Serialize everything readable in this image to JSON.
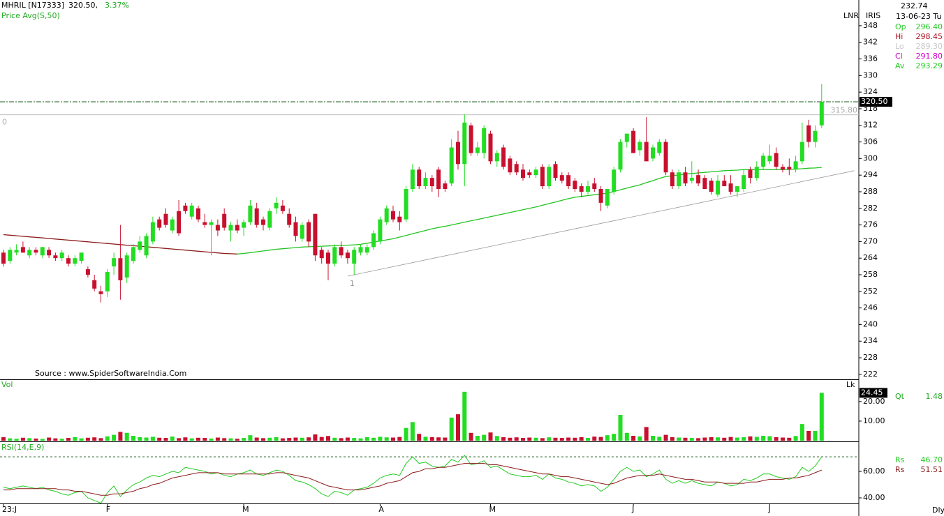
{
  "chart_data": {
    "type": "candlestick",
    "symbol": "MHRIL [N17333]",
    "last": "320.50,",
    "change": "3.37%",
    "source": "Source : www.SpiderSoftwareIndia.Com",
    "scale_labels": [
      "LNR",
      "IRIS"
    ],
    "period": "Dly",
    "up_color": "#22dd22",
    "down_color": "#c8102e",
    "categories": [
      "23:J",
      null,
      null,
      null,
      null,
      null,
      null,
      null,
      null,
      null,
      null,
      null,
      null,
      null,
      null,
      null,
      "F",
      null,
      null,
      null,
      null,
      null,
      null,
      null,
      null,
      null,
      null,
      null,
      null,
      null,
      null,
      null,
      null,
      null,
      null,
      null,
      null,
      "M",
      null,
      null,
      null,
      null,
      null,
      null,
      null,
      null,
      null,
      null,
      null,
      null,
      null,
      null,
      null,
      null,
      null,
      null,
      null,
      null,
      "A",
      null,
      null,
      null,
      null,
      null,
      null,
      null,
      null,
      null,
      null,
      null,
      null,
      null,
      null,
      null,
      null,
      "M",
      null,
      null,
      null,
      null,
      null,
      null,
      null,
      null,
      null,
      null,
      null,
      null,
      null,
      null,
      null,
      null,
      null,
      null,
      null,
      null,
      null,
      "J",
      null,
      null,
      null,
      null,
      null,
      null,
      null,
      null,
      null,
      null,
      null,
      null,
      null,
      null,
      null,
      null,
      null,
      null,
      null,
      null,
      "J",
      null,
      null,
      null,
      null,
      null,
      null,
      null,
      null
    ],
    "open": [
      266,
      263,
      266,
      268,
      265,
      267,
      265,
      267,
      265,
      264,
      264,
      262,
      263,
      260,
      256,
      252,
      252,
      261,
      264,
      257,
      263,
      267,
      265,
      270,
      278,
      280,
      274,
      281,
      283,
      279,
      282,
      277,
      276,
      276,
      280,
      274,
      276,
      275,
      277,
      282,
      278,
      275,
      282,
      283,
      280,
      277,
      271,
      277,
      280,
      267,
      266,
      262,
      268,
      266,
      262,
      266,
      266,
      268,
      270,
      277,
      281,
      279,
      278,
      289,
      296,
      290,
      293,
      296,
      291,
      291,
      306,
      298,
      312,
      302,
      302,
      309,
      299,
      304,
      300,
      298,
      296,
      295,
      294,
      297,
      290,
      298,
      294,
      294,
      292,
      290,
      288,
      291,
      289,
      283,
      288,
      296,
      306,
      310,
      303,
      306,
      300,
      302,
      306,
      295,
      290,
      295,
      292,
      294,
      293,
      292,
      287,
      292,
      291,
      288,
      289,
      296,
      293,
      297,
      299,
      302,
      297,
      297,
      296,
      299,
      312,
      306,
      312
    ],
    "high": [
      267,
      268,
      269,
      270,
      268,
      268,
      268,
      268,
      266,
      267,
      265,
      265,
      266,
      261,
      258,
      254,
      260,
      266,
      276,
      266,
      269,
      272,
      273,
      279,
      279,
      282,
      279,
      285,
      284,
      284,
      283,
      280,
      278,
      278,
      282,
      277,
      278,
      278,
      285,
      284,
      279,
      282,
      286,
      285,
      282,
      279,
      277,
      278,
      280,
      268,
      267,
      269,
      270,
      267,
      268,
      269,
      269,
      274,
      279,
      283,
      283,
      281,
      290,
      298,
      297,
      295,
      294,
      297,
      292,
      307,
      310,
      316,
      313,
      306,
      312,
      310,
      303,
      305,
      301,
      299,
      298,
      296,
      297,
      298,
      298,
      299,
      295,
      295,
      293,
      291,
      292,
      293,
      290,
      289,
      297,
      307,
      309,
      311,
      307,
      315,
      305,
      307,
      307,
      296,
      296,
      297,
      299,
      296,
      294,
      293,
      294,
      294,
      294,
      290,
      296,
      297,
      299,
      302,
      305,
      304,
      298,
      300,
      301,
      313,
      314,
      312,
      327
    ],
    "low": [
      261,
      262,
      265,
      266,
      264,
      265,
      264,
      264,
      263,
      263,
      261,
      261,
      262,
      257,
      252,
      248,
      250,
      258,
      249,
      255,
      262,
      266,
      264,
      269,
      274,
      275,
      273,
      272,
      280,
      278,
      277,
      275,
      265,
      272,
      274,
      270,
      273,
      272,
      276,
      275,
      274,
      274,
      280,
      280,
      275,
      270,
      270,
      268,
      263,
      262,
      256,
      261,
      264,
      262,
      258,
      265,
      265,
      267,
      269,
      276,
      277,
      274,
      277,
      288,
      289,
      289,
      288,
      286,
      288,
      290,
      296,
      290,
      301,
      301,
      300,
      298,
      297,
      296,
      294,
      294,
      292,
      293,
      293,
      289,
      289,
      292,
      291,
      289,
      288,
      286,
      287,
      288,
      281,
      282,
      287,
      295,
      304,
      302,
      301,
      299,
      299,
      301,
      294,
      289,
      289,
      290,
      291,
      290,
      289,
      287,
      286,
      290,
      287,
      286,
      288,
      291,
      292,
      296,
      298,
      296,
      295,
      294,
      295,
      298,
      304,
      304,
      311
    ],
    "close": [
      262,
      267,
      267,
      266,
      267,
      266,
      268,
      265,
      264,
      266,
      262,
      264,
      266,
      258,
      253,
      251,
      259,
      264,
      256,
      265,
      268,
      270,
      272,
      277,
      275,
      276,
      278,
      273,
      281,
      283,
      278,
      276,
      277,
      274,
      275,
      276,
      274,
      277,
      283,
      276,
      276,
      281,
      284,
      281,
      276,
      272,
      276,
      270,
      265,
      264,
      262,
      268,
      265,
      264,
      267,
      268,
      268,
      273,
      278,
      282,
      278,
      277,
      289,
      296,
      290,
      293,
      290,
      289,
      289,
      304,
      298,
      313,
      302,
      304,
      311,
      299,
      302,
      297,
      295,
      295,
      293,
      294,
      296,
      290,
      297,
      293,
      292,
      290,
      289,
      288,
      290,
      289,
      284,
      289,
      296,
      306,
      309,
      302,
      306,
      299,
      304,
      306,
      295,
      290,
      295,
      291,
      293,
      291,
      289,
      288,
      292,
      290,
      288,
      290,
      294,
      293,
      297,
      301,
      301,
      297,
      296,
      296,
      299,
      306,
      306,
      310,
      320.5
    ],
    "close_label": "320.50",
    "ylim": [
      220.2,
      357.3
    ],
    "yticks": [
      348,
      342,
      336,
      330,
      324,
      318,
      312,
      306,
      300,
      294,
      288,
      282,
      276,
      270,
      264,
      258,
      252,
      246,
      240,
      234,
      228,
      222
    ],
    "ma": {
      "name": "Price Avg(S,50)",
      "color": "#22c422",
      "down_color": "#8b1a1a",
      "values": [
        272.5,
        272.3,
        272.1,
        271.9,
        271.7,
        271.5,
        271.3,
        271.1,
        270.9,
        270.7,
        270.5,
        270.3,
        270.1,
        269.9,
        269.7,
        269.5,
        269.3,
        269.1,
        268.9,
        268.7,
        268.5,
        268.3,
        268.1,
        267.9,
        267.7,
        267.5,
        267.3,
        267.1,
        266.9,
        266.7,
        266.5,
        266.3,
        266.1,
        265.9,
        265.7,
        265.6,
        265.5,
        265.7,
        266.0,
        266.3,
        266.6,
        266.9,
        267.2,
        267.4,
        267.6,
        267.8,
        268.0,
        268.1,
        268.2,
        268.3,
        268.4,
        268.5,
        268.6,
        268.7,
        268.8,
        269.0,
        269.4,
        269.8,
        270.2,
        270.6,
        271.0,
        271.6,
        272.2,
        272.8,
        273.4,
        274.0,
        274.6,
        275.1,
        275.5,
        276.0,
        276.5,
        277.0,
        277.5,
        278.0,
        278.5,
        279.0,
        279.5,
        280.0,
        280.5,
        281.0,
        281.5,
        282.0,
        282.5,
        283.1,
        283.7,
        284.3,
        284.9,
        285.5,
        286.0,
        286.3,
        286.6,
        286.9,
        287.2,
        287.5,
        288.1,
        288.7,
        289.3,
        289.9,
        290.5,
        291.3,
        292.0,
        292.8,
        293.5,
        293.8,
        294.1,
        294.4,
        294.6,
        294.8,
        295.0,
        295.2,
        295.4,
        295.6,
        295.7,
        295.8,
        296.0,
        296.0,
        296.0,
        296.0,
        296.0,
        296.0,
        296.0,
        296.1,
        296.2,
        296.3,
        296.5,
        296.6,
        296.8
      ]
    },
    "levels": [
      {
        "name": "0",
        "value": 315.8,
        "label": "315.80"
      }
    ],
    "trendline": {
      "name": "1",
      "x": [
        53,
        131
      ],
      "y": [
        257.5,
        295.6
      ]
    },
    "info": {
      "price": "232.74",
      "date": "13-06-23 Tu",
      "rows": [
        {
          "name": "Op",
          "value": "296.40",
          "color": "#22cc22"
        },
        {
          "name": "Hi",
          "value": "298.45",
          "color": "#b01020"
        },
        {
          "name": "Lo",
          "value": "289.30",
          "color": "#c8c8c8"
        },
        {
          "name": "Cl",
          "value": "291.80",
          "color": "#cc00cc"
        },
        {
          "name": "Av",
          "value": "293.29",
          "color": "#22cc22"
        }
      ]
    },
    "volume": {
      "title": "Vol",
      "unit": "Lk",
      "qt_name": "Qt",
      "qt": "1.48",
      "values": [
        1.8,
        1.2,
        1.0,
        1.5,
        1.3,
        1.1,
        0.9,
        1.6,
        1.2,
        1.0,
        1.4,
        1.8,
        1.2,
        1.5,
        1.7,
        1.3,
        2.2,
        3.0,
        4.5,
        4.0,
        2.5,
        1.8,
        1.6,
        2.0,
        1.5,
        1.4,
        2.1,
        1.3,
        1.7,
        1.2,
        1.5,
        1.4,
        1.1,
        1.6,
        1.3,
        1.2,
        1.0,
        1.4,
        2.8,
        1.6,
        1.3,
        1.5,
        1.8,
        1.2,
        1.4,
        1.6,
        1.5,
        1.7,
        3.2,
        1.9,
        2.4,
        1.5,
        1.3,
        1.6,
        1.4,
        1.2,
        1.8,
        1.5,
        2.0,
        1.7,
        1.6,
        1.9,
        6.5,
        9.5,
        3.5,
        2.0,
        1.8,
        1.7,
        1.6,
        11.8,
        13.5,
        25.0,
        4.0,
        2.5,
        3.0,
        4.2,
        2.4,
        1.8,
        1.5,
        1.7,
        1.4,
        1.6,
        1.5,
        1.3,
        1.7,
        1.5,
        1.4,
        1.6,
        1.5,
        1.8,
        1.4,
        2.1,
        1.9,
        2.8,
        3.5,
        13.2,
        4.0,
        2.5,
        2.2,
        7.0,
        2.5,
        2.0,
        3.0,
        1.8,
        1.6,
        1.5,
        1.4,
        1.3,
        1.6,
        1.8,
        1.7,
        1.5,
        1.9,
        1.6,
        1.8,
        2.2,
        2.0,
        2.5,
        2.3,
        1.8,
        1.6,
        1.5,
        2.4,
        8.5,
        5.0,
        5.0,
        24.45
      ],
      "ylim": [
        0,
        31
      ],
      "yticks": [
        {
          "value": 10,
          "label": "10.00"
        },
        {
          "value": 20,
          "label": "20.00"
        }
      ]
    },
    "rsi": {
      "title": "RSI(14,E,9)",
      "level": 71,
      "ylim": [
        35.8,
        82.1
      ],
      "yticks": [
        {
          "value": 40,
          "label": "40.00"
        },
        {
          "value": 60,
          "label": "60.00"
        }
      ],
      "series": [
        {
          "name": "Rs",
          "label": "46.70",
          "color": "#22cc22",
          "values": [
            48,
            47,
            48,
            49,
            48,
            47,
            48,
            46,
            45,
            43,
            42,
            44,
            45,
            40,
            38,
            36,
            44,
            49,
            41,
            46,
            50,
            52,
            55,
            57,
            56,
            58,
            60,
            59,
            63,
            62,
            61,
            60,
            58,
            59,
            57,
            56,
            58,
            59,
            61,
            58,
            57,
            59,
            61,
            60,
            57,
            53,
            52,
            50,
            47,
            43,
            41,
            45,
            44,
            42,
            46,
            47,
            48,
            51,
            55,
            57,
            58,
            57,
            66,
            71,
            66,
            67,
            64,
            63,
            64,
            69,
            67,
            72,
            65,
            66,
            68,
            63,
            64,
            61,
            58,
            57,
            56,
            56,
            57,
            54,
            58,
            55,
            54,
            52,
            51,
            49,
            50,
            49,
            45,
            48,
            54,
            60,
            63,
            60,
            61,
            56,
            58,
            61,
            54,
            51,
            53,
            51,
            53,
            51,
            50,
            49,
            52,
            51,
            49,
            50,
            54,
            53,
            55,
            58,
            58,
            56,
            55,
            54,
            56,
            63,
            60,
            64,
            71
          ]
        },
        {
          "name": "Rs",
          "label": "51.51",
          "color": "#8b1a1a",
          "values": [
            46,
            46,
            47,
            47,
            47,
            47,
            47,
            47,
            47,
            46,
            46,
            45,
            45,
            44,
            43,
            42,
            42,
            43,
            43,
            44,
            45,
            47,
            48,
            50,
            51,
            53,
            55,
            56,
            57,
            58,
            59,
            59,
            59,
            59,
            58,
            58,
            58,
            58,
            58,
            58,
            58,
            58,
            59,
            59,
            58,
            57,
            56,
            55,
            53,
            51,
            49,
            48,
            47,
            46,
            46,
            46,
            47,
            48,
            49,
            51,
            52,
            53,
            56,
            59,
            60,
            62,
            62,
            63,
            63,
            64,
            65,
            66,
            66,
            66,
            66,
            65,
            65,
            64,
            63,
            62,
            61,
            60,
            59,
            58,
            58,
            57,
            56,
            56,
            55,
            54,
            53,
            52,
            51,
            50,
            51,
            53,
            55,
            56,
            57,
            57,
            57,
            58,
            57,
            56,
            55,
            54,
            54,
            53,
            52,
            52,
            52,
            51,
            51,
            51,
            51,
            52,
            52,
            53,
            54,
            54,
            54,
            55,
            55,
            56,
            57,
            59,
            61
          ]
        }
      ]
    }
  }
}
